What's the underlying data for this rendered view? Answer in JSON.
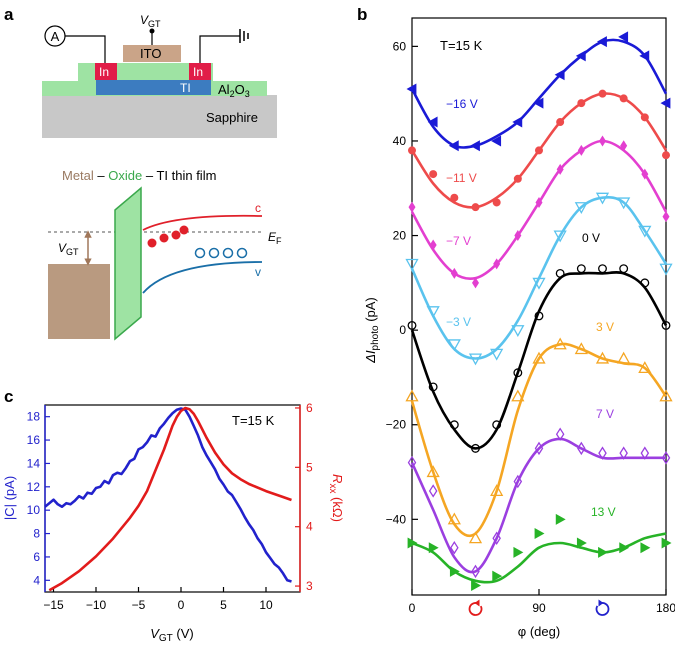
{
  "panel_labels": {
    "a": "a",
    "b": "b",
    "c": "c"
  },
  "schematic": {
    "ammeter": "A",
    "gate_voltage": "V",
    "gate_voltage_sub": "GT",
    "ito": "ITO",
    "in_left": "In",
    "in_right": "In",
    "ti": "TI",
    "al2o3": "Al",
    "al2o3_sub1": "2",
    "al2o3_mid": "O",
    "al2o3_sub2": "3",
    "sapphire": "Sapphire"
  },
  "band_diagram": {
    "title_metal": "Metal",
    "title_dash1": " – ",
    "title_oxide": "Oxide",
    "title_dash2": " – ",
    "title_ti": "TI thin film",
    "fermi": "E",
    "fermi_sub": "F",
    "gate": "V",
    "gate_sub": "GT",
    "conduction": "c",
    "valence": "v"
  },
  "colors": {
    "n16": "#1a1ad6",
    "n11": "#ee4b4b",
    "n7": "#e33fd0",
    "n3": "#5ac3ee",
    "z0": "#000000",
    "p3": "#f5a623",
    "p7": "#9b3fe0",
    "p13": "#27b327",
    "ti": "#3c7cc0",
    "oxide": "#9ee3a3",
    "sapphire": "#c8c8c8",
    "indium": "#e11d48",
    "ito": "#caa488",
    "metal": "#b99a80",
    "oxide_green": "#3aa84c",
    "cband": "#e0202a",
    "vband": "#1a6fa8",
    "ccurve": "#2222cc",
    "rcurve": "#e21b1b"
  },
  "chart_data": [
    {
      "type": "line",
      "panel": "b",
      "title": "T=15 K",
      "xlabel": "φ (deg)",
      "ylabel": "ΔI",
      "ylabel_sub": "photo",
      "ylabel_unit": " (pA)",
      "xlim": [
        0,
        180
      ],
      "ylim": [
        -56,
        66
      ],
      "xticks": [
        0,
        90,
        180
      ],
      "yticks": [
        -40,
        -20,
        0,
        20,
        40,
        60
      ],
      "x": [
        0,
        15,
        30,
        45,
        60,
        75,
        90,
        105,
        120,
        135,
        150,
        165,
        180
      ],
      "rotation_markers": {
        "left_x": 45,
        "right_x": 135
      },
      "series": [
        {
          "name": "-16 V",
          "label": "−16 V",
          "marker": "tri-left",
          "key": "n16",
          "values": [
            51,
            44,
            39,
            39,
            40,
            44,
            48,
            54,
            58,
            61,
            62,
            58,
            48
          ],
          "fit": [
            51,
            43,
            39,
            39,
            41,
            44,
            49,
            54,
            58,
            61,
            61,
            58,
            50
          ]
        },
        {
          "name": "-11 V",
          "label": "−11 V",
          "marker": "circle-filled",
          "key": "n11",
          "values": [
            38,
            33,
            28,
            26,
            27,
            32,
            38,
            44,
            48,
            50,
            49,
            45,
            37
          ],
          "fit": [
            38,
            31,
            27,
            26,
            28,
            32,
            38,
            44,
            48,
            50,
            49,
            45,
            38
          ]
        },
        {
          "name": "-7 V",
          "label": "−7 V",
          "marker": "diamond-filled",
          "key": "n7",
          "values": [
            26,
            18,
            12,
            10,
            14,
            20,
            27,
            34,
            38,
            40,
            39,
            33,
            24
          ],
          "fit": [
            25,
            17,
            12,
            11,
            14,
            20,
            27,
            34,
            38,
            40,
            38,
            33,
            25
          ]
        },
        {
          "name": "-3 V",
          "label": "−3 V",
          "marker": "tri-down-open",
          "key": "n3",
          "values": [
            14,
            4,
            -3,
            -6,
            -5,
            0,
            10,
            20,
            26,
            28,
            27,
            21,
            13
          ],
          "fit": [
            13,
            3,
            -4,
            -6,
            -4,
            2,
            11,
            20,
            26,
            28,
            27,
            21,
            14
          ]
        },
        {
          "name": "0 V",
          "label": "0 V",
          "marker": "circle-open",
          "key": "z0",
          "values": [
            1,
            -12,
            -20,
            -25,
            -20,
            -9,
            3,
            12,
            13,
            13,
            13,
            10,
            1
          ],
          "fit": [
            0,
            -13,
            -21,
            -25,
            -21,
            -9,
            4,
            11,
            12,
            12,
            12,
            9,
            1
          ]
        },
        {
          "name": "3 V",
          "label": "3 V",
          "marker": "tri-up-open",
          "key": "p3",
          "values": [
            -14,
            -30,
            -40,
            -44,
            -34,
            -14,
            -6,
            -3,
            -4,
            -6,
            -6,
            -8,
            -14
          ],
          "fit": [
            -15,
            -30,
            -41,
            -43,
            -34,
            -17,
            -6,
            -3,
            -4,
            -6,
            -7,
            -8,
            -14
          ]
        },
        {
          "name": "7 V",
          "label": "7 V",
          "marker": "diamond-open",
          "key": "p7",
          "values": [
            -28,
            -34,
            -46,
            -51,
            -44,
            -32,
            -25,
            -22,
            -25,
            -26,
            -26,
            -26,
            -27
          ],
          "fit": [
            -28,
            -38,
            -48,
            -51,
            -44,
            -32,
            -25,
            -23,
            -25,
            -27,
            -27,
            -27,
            -27
          ]
        },
        {
          "name": "13 V",
          "label": "13 V",
          "marker": "tri-right-filled",
          "key": "p13",
          "values": [
            -45,
            -46,
            -51,
            -54,
            -52,
            -47,
            -43,
            -40,
            -45,
            -47,
            -46,
            -46,
            -45
          ],
          "fit": [
            -45,
            -47,
            -51,
            -53,
            -53,
            -50,
            -46,
            -45,
            -46,
            -47,
            -46,
            -44,
            -43
          ]
        }
      ]
    },
    {
      "type": "line",
      "panel": "c",
      "title": "T=15 K",
      "xlabel": "V",
      "xlabel_sub": "GT",
      "xlabel_unit": " (V)",
      "xlim": [
        -16,
        14
      ],
      "xticks": [
        -15,
        -10,
        -5,
        0,
        5,
        10
      ],
      "left_axis": {
        "label": "|C| (pA)",
        "ylim": [
          3,
          19
        ],
        "ticks": [
          4,
          6,
          8,
          10,
          12,
          14,
          16,
          18
        ]
      },
      "right_axis": {
        "label": "R",
        "label_sub": "xx",
        "label_unit": " (kΩ)",
        "ylim": [
          2.9,
          6.05
        ],
        "ticks": [
          3,
          4,
          5,
          6
        ]
      },
      "series": [
        {
          "name": "|C|",
          "axis": "left",
          "key": "ccurve",
          "x": [
            -16,
            -15.5,
            -15,
            -14.5,
            -14,
            -13.5,
            -13,
            -12.5,
            -12,
            -11.5,
            -11,
            -10.5,
            -10,
            -9.5,
            -9,
            -8.5,
            -8,
            -7.5,
            -7,
            -6.5,
            -6,
            -5.5,
            -5,
            -4.5,
            -4,
            -3.5,
            -3,
            -2.5,
            -2,
            -1.5,
            -1,
            -0.5,
            0,
            0.5,
            1,
            1.5,
            2,
            2.5,
            3,
            3.5,
            4,
            4.5,
            5,
            5.5,
            6,
            6.5,
            7,
            7.5,
            8,
            8.5,
            9,
            9.5,
            10,
            10.5,
            11,
            11.5,
            12,
            12.5,
            13
          ],
          "y": [
            10.3,
            10.6,
            10.9,
            10.5,
            10.3,
            10.6,
            10.5,
            10.8,
            11.2,
            11.0,
            11.5,
            11.4,
            11.9,
            12.0,
            12.5,
            12.3,
            13.0,
            13.2,
            13.1,
            13.6,
            14.2,
            14.4,
            15.2,
            15.4,
            15.8,
            16.4,
            16.3,
            17.0,
            17.4,
            17.9,
            18.3,
            18.6,
            18.7,
            18.6,
            18.0,
            17.2,
            16.4,
            15.4,
            14.7,
            14.1,
            13.5,
            12.7,
            12.2,
            11.6,
            11.3,
            10.7,
            10.1,
            9.4,
            8.8,
            8.3,
            7.6,
            7.1,
            6.4,
            5.9,
            5.4,
            5.1,
            4.6,
            4.0,
            3.9
          ]
        },
        {
          "name": "Rxx",
          "axis": "right",
          "key": "rcurve",
          "x": [
            -15.5,
            -14,
            -12,
            -10,
            -8,
            -6,
            -5,
            -4,
            -3,
            -2,
            -1,
            -0.5,
            0,
            0.5,
            1,
            1.5,
            2,
            3,
            4,
            5,
            6,
            7,
            8,
            10,
            12,
            13
          ],
          "y": [
            2.93,
            3.05,
            3.25,
            3.5,
            3.8,
            4.15,
            4.35,
            4.6,
            4.95,
            5.3,
            5.7,
            5.85,
            5.95,
            6.0,
            5.98,
            5.9,
            5.78,
            5.5,
            5.25,
            5.05,
            4.9,
            4.8,
            4.72,
            4.6,
            4.5,
            4.45
          ]
        }
      ]
    }
  ]
}
